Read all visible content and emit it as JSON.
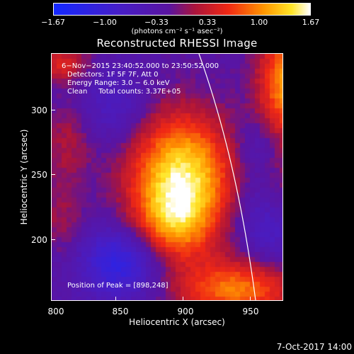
{
  "colorbar": {
    "ticks": [
      "−1.67",
      "−1.00",
      "−0.33",
      "0.33",
      "1.00",
      "1.67"
    ],
    "units": "(photons cm⁻² s⁻¹ asec⁻²)"
  },
  "title": "Reconstructed RHESSI Image",
  "annotations": {
    "time_range": "6−Nov−2015 23:40:52.000 to 23:50:52.000",
    "detectors": "Detectors: 1F 5F 7F, Att 0",
    "energy": "Energy Range: 3.0 − 6.0 keV",
    "clean": "Clean     Total counts: 3.37E+05",
    "peak": "Position of Peak = [898,248]"
  },
  "axes": {
    "xlabel": "Heliocentric X (arcsec)",
    "ylabel": "Heliocentric Y (arcsec)",
    "xticks": [
      "800",
      "850",
      "900",
      "950"
    ],
    "yticks": [
      "300",
      "250",
      "200"
    ],
    "xlim": [
      800,
      990
    ],
    "ylim": [
      153,
      340
    ]
  },
  "footer": {
    "date": "7-Oct-2017 14:00"
  }
}
